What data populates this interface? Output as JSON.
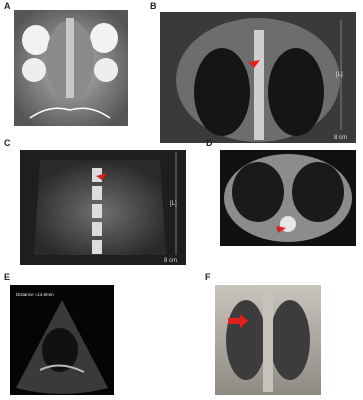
{
  "panels": [
    {
      "label": "A"
    },
    {
      "label": "B",
      "orientation": "[L]",
      "scale": "8 cm"
    },
    {
      "label": "C",
      "orientation": "[L]",
      "scale": "8 cm"
    },
    {
      "label": "D"
    },
    {
      "label": "E",
      "measurement": "Distance =14.6mm"
    },
    {
      "label": "F"
    }
  ]
}
